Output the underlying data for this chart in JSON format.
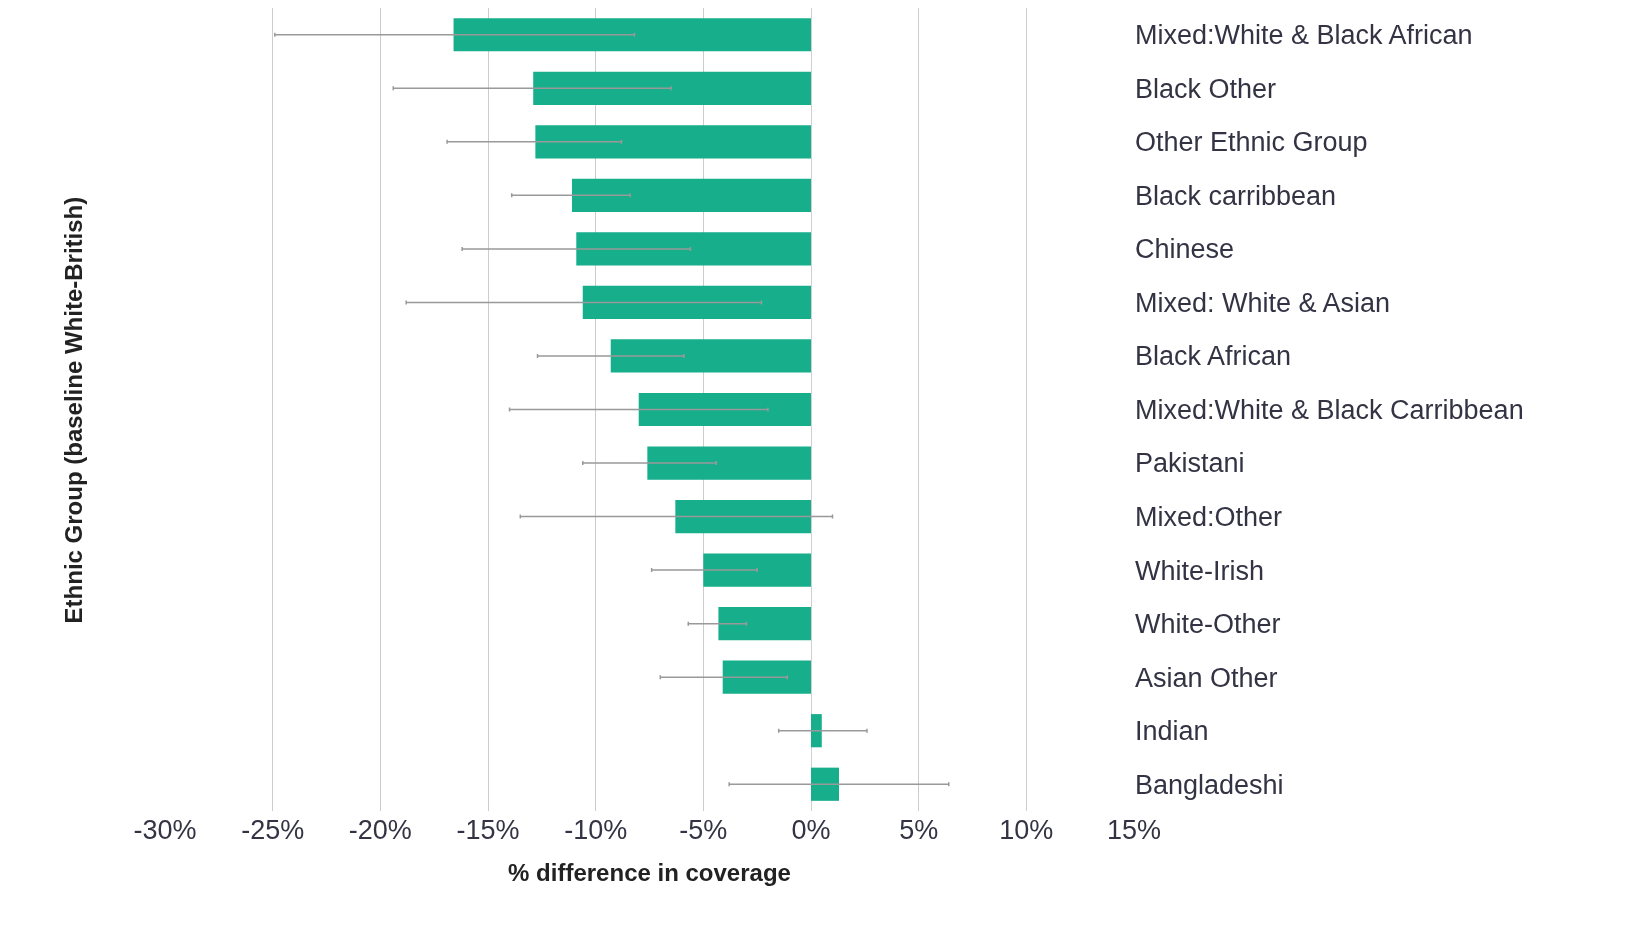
{
  "chart_data": {
    "type": "bar",
    "orientation": "horizontal",
    "xlabel": "% difference in coverage",
    "ylabel": "Ethnic Group (baseline White-British)",
    "categories": [
      "Mixed:White & Black African",
      "Black Other",
      "Other Ethnic Group",
      "Black carribbean",
      "Chinese",
      "Mixed: White & Asian",
      "Black African",
      "Mixed:White & Black Carribbean",
      "Pakistani",
      "Mixed:Other",
      "White-Irish",
      "White-Other",
      "Asian Other",
      "Indian",
      "Bangladeshi"
    ],
    "values": [
      -16.6,
      -12.9,
      -12.8,
      -11.1,
      -10.9,
      -10.6,
      -9.3,
      -8.0,
      -7.6,
      -6.3,
      -5.0,
      -4.3,
      -4.1,
      0.5,
      1.3
    ],
    "errors": [
      [
        -24.9,
        -8.2
      ],
      [
        -19.4,
        -6.5
      ],
      [
        -16.9,
        -8.8
      ],
      [
        -13.9,
        -8.4
      ],
      [
        -16.2,
        -5.6
      ],
      [
        -18.8,
        -2.3
      ],
      [
        -12.7,
        -5.9
      ],
      [
        -14.0,
        -2.0
      ],
      [
        -10.6,
        -4.4
      ],
      [
        -13.5,
        1.0
      ],
      [
        -7.4,
        -2.5
      ],
      [
        -5.7,
        -3.0
      ],
      [
        -7.0,
        -1.1
      ],
      [
        -1.5,
        2.6
      ],
      [
        -3.8,
        6.4
      ]
    ],
    "color": "#16ae8b",
    "xlim": [
      -30,
      15
    ],
    "xticks": [
      {
        "value": -30,
        "label": "-30%"
      },
      {
        "value": -25,
        "label": "-25%"
      },
      {
        "value": -20,
        "label": "-20%"
      },
      {
        "value": -15,
        "label": "-15%"
      },
      {
        "value": -10,
        "label": "-10%"
      },
      {
        "value": -5,
        "label": "-5%"
      },
      {
        "value": 0,
        "label": "0%"
      },
      {
        "value": 5,
        "label": "5%"
      },
      {
        "value": 10,
        "label": "10%"
      },
      {
        "value": 15,
        "label": "15%"
      }
    ],
    "grid": "x",
    "legend": false
  }
}
